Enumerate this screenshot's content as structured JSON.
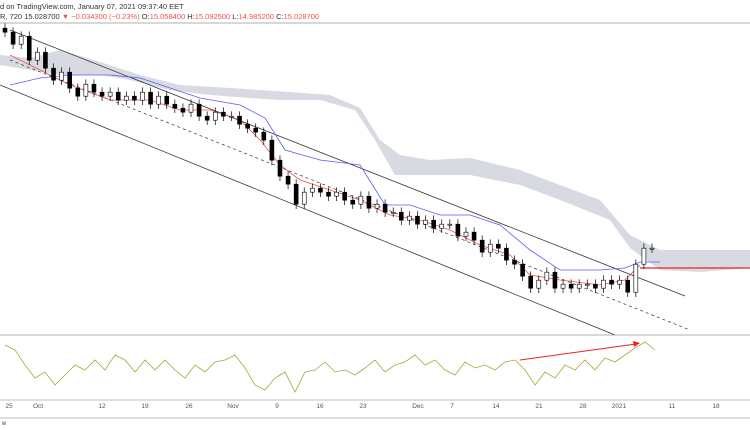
{
  "header": {
    "published": "d on TradingView.com, January 07, 2021 09:37:40 EET",
    "symbol": "R, 720",
    "last": "15.028700",
    "change_icon": "down-triangle-icon",
    "change": "−0.034300 (−0.23%)",
    "o_label": "O:",
    "o": "15.058400",
    "h_label": "H:",
    "h": "15.092500",
    "l_label": "L:",
    "l": "14.985200",
    "c_label": "C:",
    "c": "15.028700"
  },
  "footer_text": "w",
  "colors": {
    "up": "#ffffff",
    "down": "#000000",
    "tenkan": "#ef5350",
    "kijun": "#5b5bff",
    "cloud": "#d1d4dc",
    "osc": "#a5a83a"
  },
  "chart_data": {
    "type": "candlestick",
    "title": "",
    "x_tick_labels": [
      "25",
      "Oct",
      "12",
      "19",
      "26",
      "Nov",
      "9",
      "16",
      "23",
      "Dec",
      "7",
      "14",
      "21",
      "28",
      "2021",
      "11",
      "18"
    ],
    "closes": [
      20.4,
      20.1,
      20.3,
      19.7,
      19.9,
      19.5,
      19.2,
      19.4,
      19.0,
      18.8,
      19.1,
      18.9,
      18.8,
      18.9,
      18.7,
      18.8,
      18.7,
      18.9,
      18.6,
      18.8,
      18.6,
      18.5,
      18.4,
      18.6,
      18.3,
      18.2,
      18.4,
      18.3,
      18.3,
      18.1,
      18.0,
      17.9,
      17.7,
      17.2,
      16.8,
      16.6,
      16.1,
      16.4,
      16.5,
      16.4,
      16.3,
      16.4,
      16.2,
      16.1,
      16.3,
      16.0,
      16.1,
      15.9,
      15.9,
      15.7,
      15.8,
      15.6,
      15.7,
      15.5,
      15.6,
      15.6,
      15.3,
      15.4,
      15.2,
      14.9,
      15.1,
      15.0,
      14.7,
      14.6,
      14.3,
      14.0,
      14.2,
      14.4,
      14.0,
      14.1,
      14.0,
      14.1,
      14.1,
      14.0,
      14.2,
      14.1,
      14.2,
      13.9,
      14.6,
      15.0,
      15.0
    ]
  }
}
